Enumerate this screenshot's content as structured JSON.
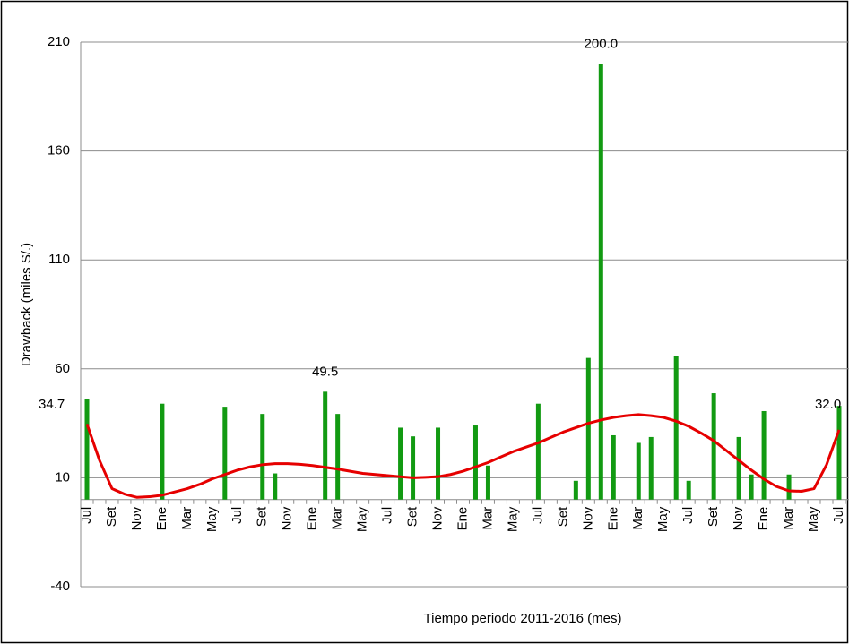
{
  "chart_data": {
    "type": "bar",
    "ylabel": "Drawback (miles S/.)",
    "xlabel": "Tiempo periodo 2011-2016 (mes)",
    "categories": [
      "Jul",
      null,
      "Set",
      null,
      "Nov",
      null,
      "Ene",
      null,
      "Mar",
      null,
      "May",
      null,
      "Jul",
      null,
      "Set",
      null,
      "Nov",
      null,
      "Ene",
      null,
      "Mar",
      null,
      "May",
      null,
      "Jul",
      null,
      "Set",
      null,
      "Nov",
      null,
      "Ene",
      null,
      "Mar",
      null,
      "May",
      null,
      "Jul",
      null,
      "Set",
      null,
      "Nov",
      null,
      "Ene",
      null,
      "Mar",
      null,
      "May",
      null,
      "Jul",
      null,
      "Set",
      null,
      "Nov",
      null,
      "Ene",
      null,
      "Mar",
      null,
      "May",
      null,
      "Jul"
    ],
    "values": [
      46,
      null,
      null,
      null,
      null,
      null,
      44,
      null,
      null,
      null,
      null,
      42.6,
      null,
      null,
      39.3,
      12,
      null,
      null,
      null,
      49.5,
      39.3,
      null,
      null,
      null,
      null,
      33,
      29,
      null,
      33,
      null,
      null,
      34,
      15.6,
      null,
      null,
      null,
      44,
      null,
      null,
      8.6,
      65,
      200,
      29.5,
      null,
      26,
      28.7,
      null,
      66,
      8.6,
      null,
      48.8,
      null,
      28.7,
      11.5,
      40.6,
      null,
      11.5,
      null,
      null,
      null,
      43
    ],
    "value_labels": [
      null,
      null,
      null,
      null,
      null,
      null,
      null,
      null,
      null,
      null,
      null,
      null,
      null,
      null,
      null,
      null,
      null,
      null,
      null,
      "49.5",
      null,
      null,
      null,
      null,
      null,
      null,
      null,
      null,
      null,
      null,
      null,
      null,
      null,
      null,
      null,
      null,
      null,
      null,
      null,
      null,
      null,
      "200.0",
      null,
      null,
      null,
      null,
      null,
      null,
      null,
      null,
      null,
      null,
      null,
      null,
      null,
      null,
      null,
      null,
      null,
      null,
      null
    ],
    "color": "#129a12",
    "trend": {
      "color": "#e60000",
      "values": [
        34.7,
        18,
        5,
        2.5,
        1,
        1.3,
        2,
        3.5,
        5,
        7,
        9.5,
        11.5,
        13.5,
        15,
        16,
        16.5,
        16.5,
        16.2,
        15.6,
        14.8,
        14,
        13,
        12,
        11.5,
        11,
        10.5,
        10,
        10.2,
        10.5,
        11.5,
        13,
        15,
        17,
        19.5,
        22,
        24,
        26,
        28.5,
        31,
        33,
        35,
        36.5,
        37.7,
        38.5,
        39,
        38.5,
        37.7,
        36,
        33.6,
        30.5,
        27,
        22.5,
        18,
        13.5,
        9.4,
        6,
        4,
        3.8,
        5,
        16,
        32.0
      ],
      "value_labels": [
        "34.7",
        null,
        null,
        null,
        null,
        null,
        null,
        null,
        null,
        null,
        null,
        null,
        null,
        null,
        null,
        null,
        null,
        null,
        null,
        null,
        null,
        null,
        null,
        null,
        null,
        null,
        null,
        null,
        null,
        null,
        null,
        null,
        null,
        null,
        null,
        null,
        null,
        null,
        null,
        null,
        null,
        null,
        null,
        null,
        null,
        null,
        null,
        null,
        null,
        null,
        null,
        null,
        null,
        null,
        null,
        null,
        null,
        null,
        null,
        null,
        "32.0"
      ]
    },
    "ylim": [
      -40,
      210
    ],
    "yticks": [
      -40,
      10,
      60,
      110,
      160,
      210
    ],
    "grid": true
  }
}
